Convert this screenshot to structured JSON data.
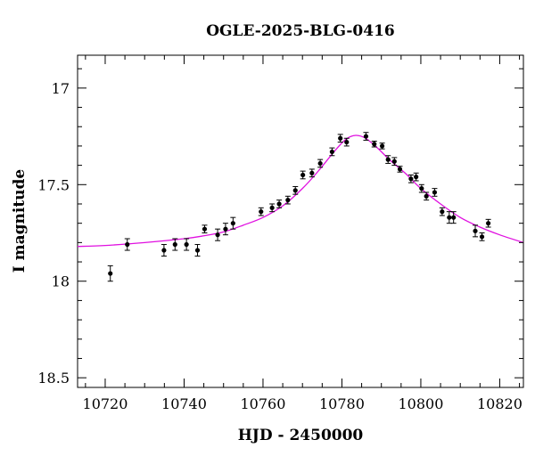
{
  "chart_data": {
    "type": "scatter",
    "title": "OGLE-2025-BLG-0416",
    "xlabel": "HJD - 2450000",
    "ylabel": "I magnitude",
    "xlim": [
      10713,
      10826
    ],
    "ylim": [
      18.55,
      16.83
    ],
    "y_inverted": true,
    "grid": false,
    "x_ticks": [
      10720,
      10740,
      10760,
      10780,
      10800,
      10820
    ],
    "x_tick_labels": [
      "10720",
      "10740",
      "10760",
      "10780",
      "10800",
      "10820"
    ],
    "y_ticks": [
      17.0,
      17.5,
      18.0,
      18.5
    ],
    "y_tick_labels": [
      "17",
      "17.5",
      "18",
      "18.5"
    ],
    "colors": {
      "data": "#000000",
      "model": "#e010e0",
      "axes": "#000000"
    },
    "series": [
      {
        "type": "scatter_errorbar",
        "x": [
          10721.3,
          10725.6,
          10734.9,
          10737.7,
          10740.6,
          10743.4,
          10745.2,
          10748.5,
          10750.5,
          10752.4,
          10759.5,
          10762.3,
          10764.1,
          10766.3,
          10768.2,
          10770.1,
          10772.4,
          10774.5,
          10777.5,
          10779.6,
          10781.2,
          10786.1,
          10788.2,
          10790.2,
          10791.7,
          10793.3,
          10794.7,
          10797.5,
          10798.8,
          10800.2,
          10801.4,
          10803.5,
          10805.4,
          10807.2,
          10808.3,
          10813.8,
          10815.5,
          10817.1
        ],
        "y": [
          17.96,
          17.81,
          17.84,
          17.81,
          17.81,
          17.84,
          17.73,
          17.76,
          17.73,
          17.7,
          17.64,
          17.62,
          17.6,
          17.58,
          17.53,
          17.45,
          17.44,
          17.39,
          17.33,
          17.26,
          17.28,
          17.25,
          17.29,
          17.3,
          17.37,
          17.38,
          17.42,
          17.47,
          17.46,
          17.52,
          17.56,
          17.54,
          17.64,
          17.67,
          17.67,
          17.74,
          17.77,
          17.7
        ],
        "yerr": [
          0.04,
          0.03,
          0.03,
          0.03,
          0.03,
          0.03,
          0.02,
          0.03,
          0.03,
          0.03,
          0.02,
          0.02,
          0.02,
          0.02,
          0.02,
          0.02,
          0.02,
          0.02,
          0.02,
          0.02,
          0.02,
          0.02,
          0.015,
          0.015,
          0.02,
          0.02,
          0.015,
          0.02,
          0.02,
          0.02,
          0.02,
          0.02,
          0.02,
          0.03,
          0.03,
          0.03,
          0.02,
          0.02
        ]
      },
      {
        "type": "line",
        "x": [
          10713,
          10720,
          10730,
          10740,
          10745,
          10750,
          10755,
          10760,
          10765,
          10770,
          10774,
          10778,
          10781,
          10783.5,
          10786,
          10789,
          10792,
          10796,
          10800,
          10805,
          10810,
          10815,
          10820,
          10826
        ],
        "y": [
          17.82,
          17.815,
          17.8,
          17.78,
          17.765,
          17.745,
          17.71,
          17.67,
          17.61,
          17.52,
          17.43,
          17.33,
          17.265,
          17.245,
          17.26,
          17.31,
          17.37,
          17.44,
          17.52,
          17.6,
          17.67,
          17.72,
          17.76,
          17.8
        ]
      }
    ]
  }
}
